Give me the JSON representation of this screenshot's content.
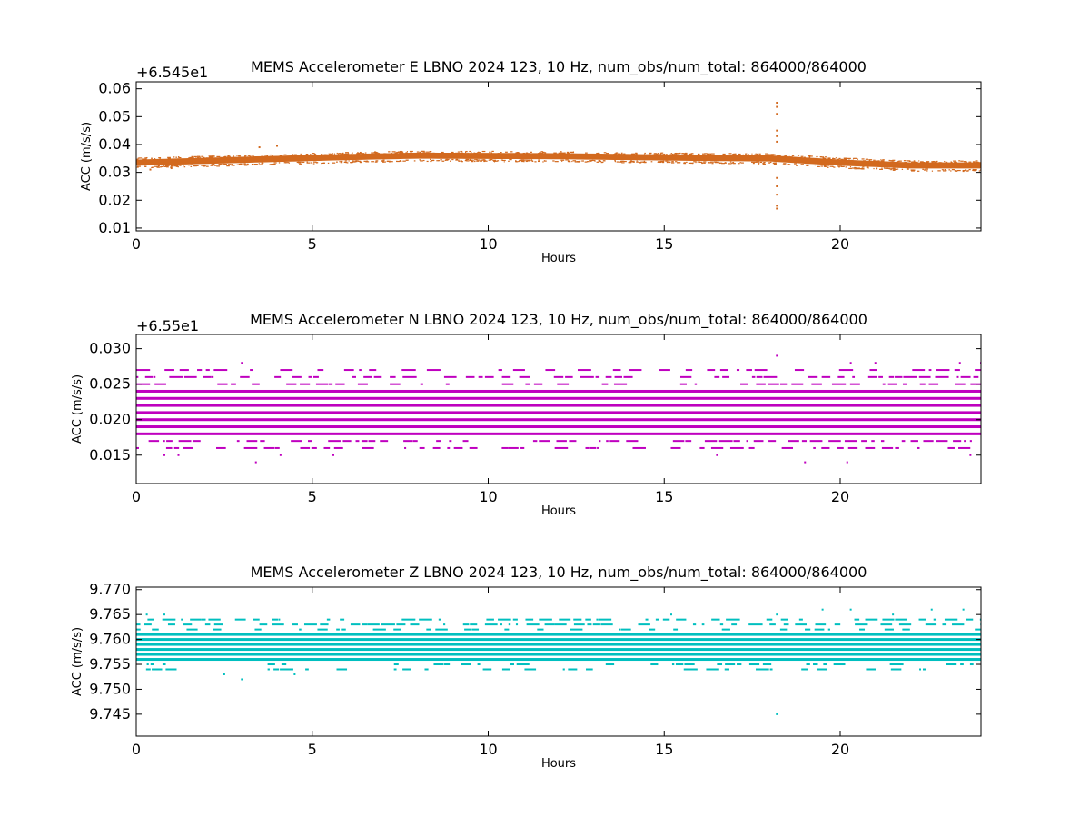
{
  "chart_data": [
    {
      "type": "scatter",
      "title": "MEMS Accelerometer E LBNO 2024 123, 10 Hz, num_obs/num_total: 864000/864000",
      "xlabel": "Hours",
      "ylabel": "ACC (m/s/s)",
      "offset_label": "+6.545e1",
      "offset": 65.45,
      "xlim": [
        0,
        24
      ],
      "ylim": [
        0.009,
        0.0625
      ],
      "xticks": [
        0,
        5,
        10,
        15,
        20
      ],
      "xtick_labels": [
        "0",
        "5",
        "10",
        "15",
        "20"
      ],
      "yticks": [
        0.01,
        0.02,
        0.03,
        0.04,
        0.05,
        0.06
      ],
      "ytick_labels": [
        "0.01",
        "0.02",
        "0.03",
        "0.04",
        "0.05",
        "0.06"
      ],
      "color": "#d2691e",
      "series": [
        {
          "band_center": [
            [
              0,
              0.0335
            ],
            [
              3,
              0.0345
            ],
            [
              6,
              0.0355
            ],
            [
              8,
              0.036
            ],
            [
              12,
              0.0358
            ],
            [
              16,
              0.0352
            ],
            [
              18,
              0.035
            ],
            [
              20,
              0.0335
            ],
            [
              22,
              0.0325
            ],
            [
              24,
              0.0325
            ]
          ],
          "band_halfwidth": 0.0022,
          "outliers": [
            [
              18.2,
              0.055
            ],
            [
              18.2,
              0.0535
            ],
            [
              18.2,
              0.051
            ],
            [
              18.2,
              0.045
            ],
            [
              18.2,
              0.043
            ],
            [
              18.2,
              0.041
            ],
            [
              18.2,
              0.028
            ],
            [
              18.2,
              0.025
            ],
            [
              18.2,
              0.022
            ],
            [
              18.2,
              0.018
            ],
            [
              18.2,
              0.017
            ],
            [
              3.5,
              0.039
            ],
            [
              4.0,
              0.0395
            ],
            [
              0.4,
              0.031
            ],
            [
              1.0,
              0.0315
            ],
            [
              23.5,
              0.0305
            ]
          ]
        }
      ]
    },
    {
      "type": "scatter",
      "title": "MEMS Accelerometer N LBNO 2024 123, 10 Hz, num_obs/num_total: 864000/864000",
      "xlabel": "Hours",
      "ylabel": "ACC (m/s/s)",
      "offset_label": "+6.55e1",
      "offset": 65.5,
      "xlim": [
        0,
        24
      ],
      "ylim": [
        0.011,
        0.032
      ],
      "xticks": [
        0,
        5,
        10,
        15,
        20
      ],
      "xtick_labels": [
        "0",
        "5",
        "10",
        "15",
        "20"
      ],
      "yticks": [
        0.015,
        0.02,
        0.025,
        0.03
      ],
      "ytick_labels": [
        "0.015",
        "0.020",
        "0.025",
        "0.030"
      ],
      "color": "#bf00bf",
      "series": [
        {
          "solid_levels": [
            0.018,
            0.019,
            0.02,
            0.021,
            0.022,
            0.023,
            0.024
          ],
          "sparse_levels": [
            0.016,
            0.017,
            0.025,
            0.026,
            0.027
          ],
          "outliers": [
            [
              0.8,
              0.015
            ],
            [
              1.2,
              0.015
            ],
            [
              3.0,
              0.028
            ],
            [
              3.4,
              0.014
            ],
            [
              4.1,
              0.015
            ],
            [
              5.6,
              0.015
            ],
            [
              18.2,
              0.029
            ],
            [
              19.0,
              0.014
            ],
            [
              20.2,
              0.014
            ],
            [
              20.3,
              0.028
            ],
            [
              21.0,
              0.028
            ],
            [
              23.4,
              0.028
            ],
            [
              24.0,
              0.028
            ],
            [
              16.5,
              0.015
            ],
            [
              23.7,
              0.015
            ]
          ]
        }
      ]
    },
    {
      "type": "scatter",
      "title": "MEMS Accelerometer Z LBNO 2024 123, 10 Hz, num_obs/num_total: 864000/864000",
      "xlabel": "Hours",
      "ylabel": "ACC (m/s/s)",
      "offset_label": "",
      "offset": 0,
      "xlim": [
        0,
        24
      ],
      "ylim": [
        9.7406,
        9.7705
      ],
      "xticks": [
        0,
        5,
        10,
        15,
        20
      ],
      "xtick_labels": [
        "0",
        "5",
        "10",
        "15",
        "20"
      ],
      "yticks": [
        9.745,
        9.75,
        9.755,
        9.76,
        9.765,
        9.77
      ],
      "ytick_labels": [
        "9.745",
        "9.750",
        "9.755",
        "9.760",
        "9.765",
        "9.770"
      ],
      "color": "#00bfbf",
      "series": [
        {
          "solid_levels": [
            9.756,
            9.757,
            9.758,
            9.759,
            9.76,
            9.761
          ],
          "sparse_levels": [
            9.754,
            9.755,
            9.762,
            9.763,
            9.764
          ],
          "outliers": [
            [
              18.2,
              9.745
            ],
            [
              3.0,
              9.752
            ],
            [
              2.5,
              9.753
            ],
            [
              4.5,
              9.753
            ],
            [
              0.3,
              9.765
            ],
            [
              0.8,
              9.765
            ],
            [
              19.5,
              9.766
            ],
            [
              20.3,
              9.766
            ],
            [
              21.5,
              9.765
            ],
            [
              22.6,
              9.766
            ],
            [
              23.5,
              9.766
            ],
            [
              18.2,
              9.765
            ],
            [
              15.2,
              9.765
            ]
          ]
        }
      ]
    }
  ]
}
